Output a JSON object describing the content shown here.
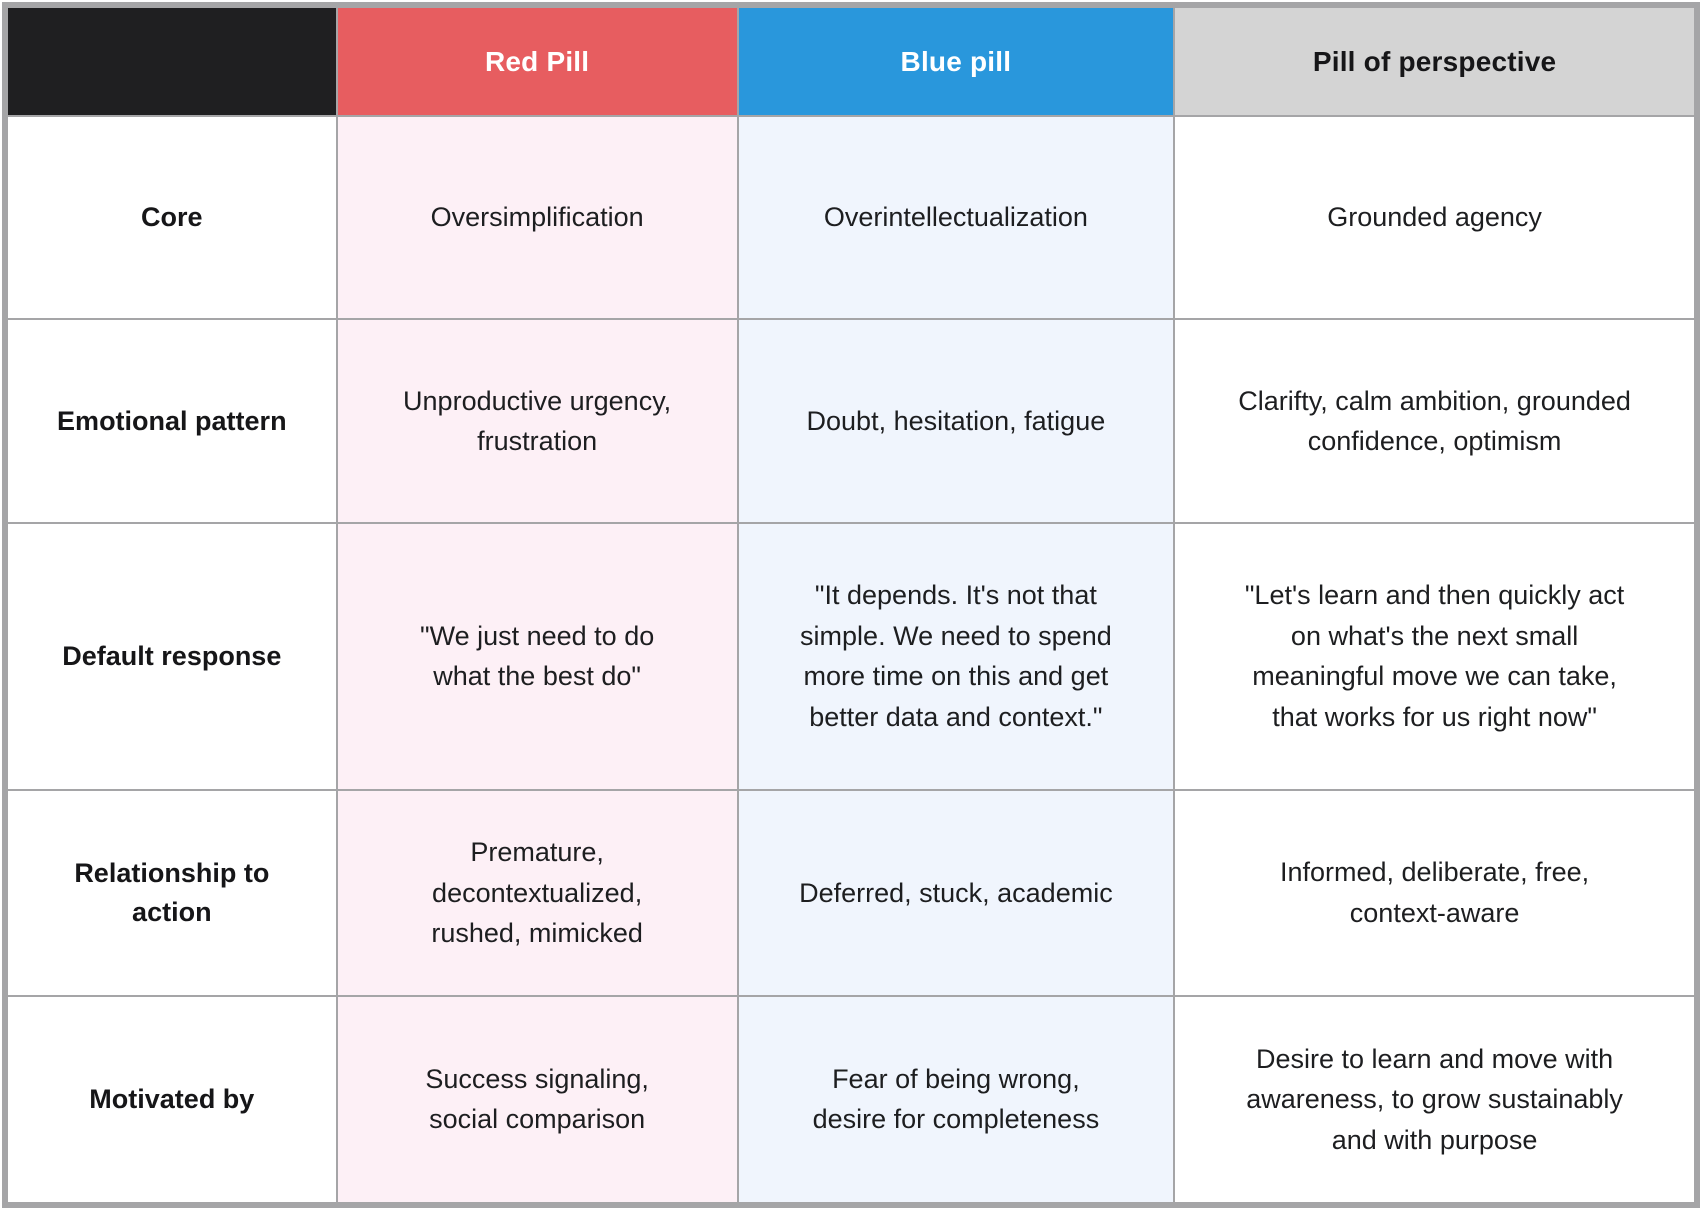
{
  "table": {
    "corner_bg": "#1f1f21",
    "border_color": "#a5a5a7",
    "columns": [
      {
        "key": "red",
        "label": "Red Pill",
        "header_bg": "#e75d60",
        "header_text": "#ffffff",
        "cell_bg": "#fdf0f6"
      },
      {
        "key": "blue",
        "label": "Blue pill",
        "header_bg": "#2997dc",
        "header_text": "#ffffff",
        "cell_bg": "#f0f5fd"
      },
      {
        "key": "perspective",
        "label": "Pill of perspective",
        "header_bg": "#d4d4d4",
        "header_text": "#161618",
        "cell_bg": "#ffffff"
      }
    ],
    "rows": [
      {
        "label": "Core",
        "red": "Oversimplification",
        "blue": "Overintellectualization",
        "perspective": "Grounded agency"
      },
      {
        "label": "Emotional pattern",
        "red": "Unproductive urgency,\nfrustration",
        "blue": "Doubt, hesitation, fatigue",
        "perspective": "Clarifty, calm ambition, grounded\nconfidence, optimism"
      },
      {
        "label": "Default response",
        "red": "\"We just need to do\nwhat the best do\"",
        "blue": "\"It depends. It's not that\nsimple. We need to spend\nmore time on this and get\nbetter data and context.\"",
        "perspective": "\"Let's learn and then quickly act\non what's the next small\nmeaningful move we can take,\nthat works for us right now\""
      },
      {
        "label": "Relationship to\naction",
        "red": "Premature,\ndecontextualized,\nrushed, mimicked",
        "blue": "Deferred, stuck, academic",
        "perspective": "Informed, deliberate, free,\ncontext-aware"
      },
      {
        "label": "Motivated by",
        "red": "Success signaling,\nsocial comparison",
        "blue": "Fear of being wrong,\ndesire for completeness",
        "perspective": "Desire to learn and move with\nawareness, to grow sustainably\nand with purpose"
      }
    ]
  }
}
